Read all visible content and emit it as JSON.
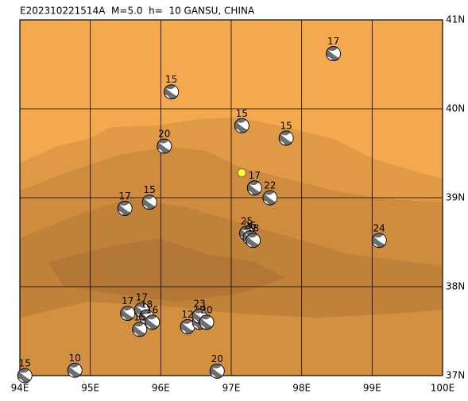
{
  "map": {
    "title": "E202310221514A  M=5.0  h=  10 GANSU, CHINA",
    "xlim": [
      94,
      100
    ],
    "ylim": [
      37,
      41
    ],
    "xticks": [
      {
        "value": 94,
        "label": "94E"
      },
      {
        "value": 95,
        "label": "95E"
      },
      {
        "value": 96,
        "label": "96E"
      },
      {
        "value": 97,
        "label": "97E"
      },
      {
        "value": 98,
        "label": "98E"
      },
      {
        "value": 99,
        "label": "99E"
      },
      {
        "value": 100,
        "label": "100E"
      }
    ],
    "yticks": [
      {
        "value": 37,
        "label": "37N"
      },
      {
        "value": 38,
        "label": "38N"
      },
      {
        "value": 39,
        "label": "39N"
      },
      {
        "value": 40,
        "label": "40N"
      },
      {
        "value": 41,
        "label": "41N"
      }
    ],
    "epicenter": {
      "lon": 97.15,
      "lat": 39.28
    },
    "events": [
      {
        "lon": 98.45,
        "lat": 40.62,
        "depth": 17
      },
      {
        "lon": 96.15,
        "lat": 40.19,
        "depth": 15
      },
      {
        "lon": 97.15,
        "lat": 39.81,
        "depth": 15
      },
      {
        "lon": 97.78,
        "lat": 39.67,
        "depth": 15
      },
      {
        "lon": 96.05,
        "lat": 39.58,
        "depth": 20
      },
      {
        "lon": 97.33,
        "lat": 39.11,
        "depth": 17
      },
      {
        "lon": 97.55,
        "lat": 39.0,
        "depth": 22
      },
      {
        "lon": 95.49,
        "lat": 38.88,
        "depth": 17
      },
      {
        "lon": 95.84,
        "lat": 38.95,
        "depth": 15
      },
      {
        "lon": 99.1,
        "lat": 38.52,
        "depth": 24
      },
      {
        "lon": 97.22,
        "lat": 38.6,
        "depth": 25
      },
      {
        "lon": 97.27,
        "lat": 38.55,
        "depth": 26
      },
      {
        "lon": 97.31,
        "lat": 38.52,
        "depth": 18
      },
      {
        "lon": 95.53,
        "lat": 37.7,
        "depth": 17
      },
      {
        "lon": 95.73,
        "lat": 37.74,
        "depth": 17
      },
      {
        "lon": 95.8,
        "lat": 37.66,
        "depth": 18
      },
      {
        "lon": 95.88,
        "lat": 37.6,
        "depth": 16
      },
      {
        "lon": 95.7,
        "lat": 37.52,
        "depth": 15
      },
      {
        "lon": 96.38,
        "lat": 37.55,
        "depth": 12
      },
      {
        "lon": 96.55,
        "lat": 37.6,
        "depth": 19
      },
      {
        "lon": 96.55,
        "lat": 37.67,
        "depth": 23
      },
      {
        "lon": 96.65,
        "lat": 37.6,
        "depth": 20
      },
      {
        "lon": 96.8,
        "lat": 37.05,
        "depth": 20
      },
      {
        "lon": 94.78,
        "lat": 37.06,
        "depth": 10
      },
      {
        "lon": 94.07,
        "lat": 37.0,
        "depth": 15
      }
    ]
  }
}
